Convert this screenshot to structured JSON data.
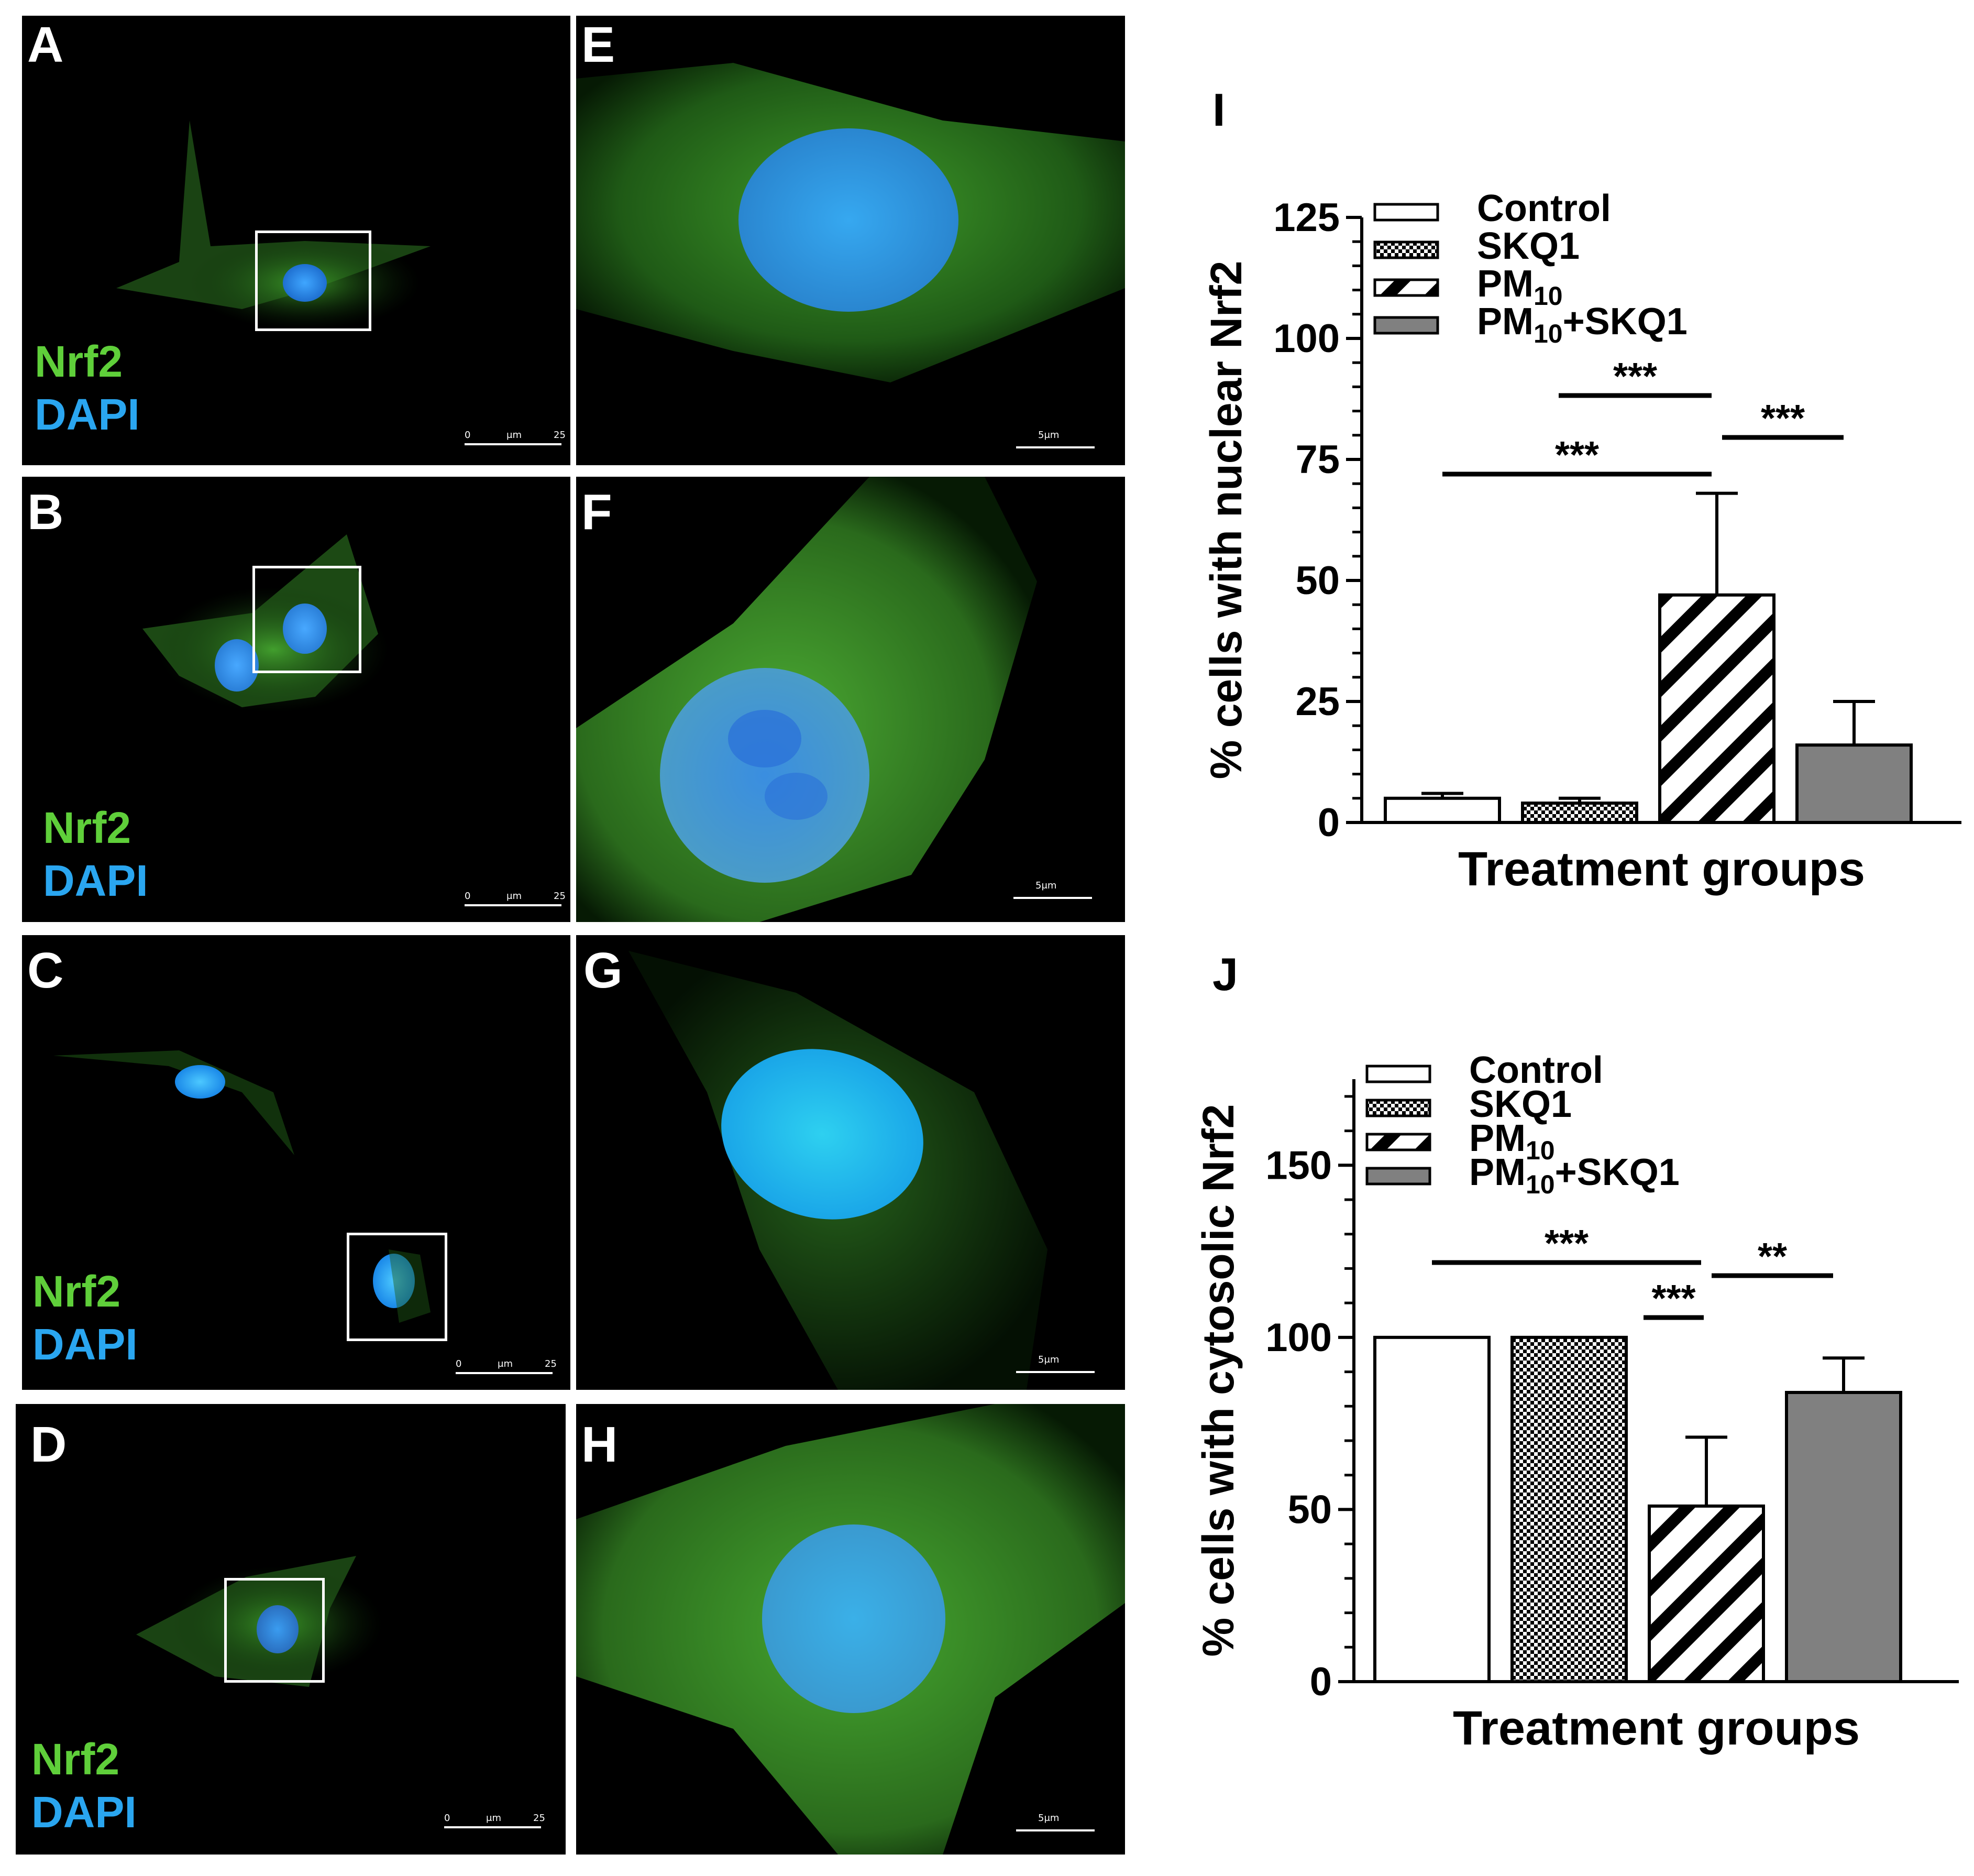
{
  "micrographs": [
    {
      "label": "A",
      "stain_green": "Nrf2",
      "stain_blue": "DAPI",
      "scale": {
        "left": "0",
        "mid": "μm",
        "right": "25"
      }
    },
    {
      "label": "B",
      "stain_green": "Nrf2",
      "stain_blue": "DAPI",
      "scale": {
        "left": "0",
        "mid": "μm",
        "right": "25"
      }
    },
    {
      "label": "C",
      "stain_green": "Nrf2",
      "stain_blue": "DAPI",
      "scale": {
        "left": "0",
        "mid": "μm",
        "right": "25"
      }
    },
    {
      "label": "D",
      "stain_green": "Nrf2",
      "stain_blue": "DAPI",
      "scale": {
        "left": "0",
        "mid": "μm",
        "right": "25"
      }
    },
    {
      "label": "E",
      "scale_text": "5μm"
    },
    {
      "label": "F",
      "scale_text": "5μm"
    },
    {
      "label": "G",
      "scale_text": "5μm"
    },
    {
      "label": "H",
      "scale_text": "5μm"
    }
  ],
  "colors": {
    "nrf2": "#5fcf3a",
    "dapi": "#2aa6f0",
    "bar_gray": "#808080"
  },
  "chart_data": [
    {
      "panel": "I",
      "type": "bar",
      "ylabel": "% cells with nuclear Nrf2",
      "xlabel": "Treatment groups",
      "ylim": [
        0,
        125
      ],
      "yticks": [
        "0",
        "25",
        "50",
        "75",
        "100",
        "125"
      ],
      "categories": [
        "Control",
        "SKQ1",
        "PM10",
        "PM10+SKQ1"
      ],
      "values": [
        5,
        4,
        47,
        16
      ],
      "errors": [
        1,
        1,
        21,
        9
      ],
      "patterns": [
        "white",
        "checker",
        "diagonal",
        "gray"
      ],
      "legend": [
        {
          "text": "Control",
          "sub": ""
        },
        {
          "text": "SKQ1",
          "sub": ""
        },
        {
          "text": "PM",
          "sub": "10",
          "rest": ""
        },
        {
          "text": "PM",
          "sub": "10",
          "rest": "+SKQ1"
        }
      ],
      "significance": [
        {
          "from": 0,
          "to": 2,
          "label": "***"
        },
        {
          "from": 1,
          "to": 2,
          "label": "***"
        },
        {
          "from": 2,
          "to": 3,
          "label": "***"
        }
      ]
    },
    {
      "panel": "J",
      "type": "bar",
      "ylabel": "% cells with cytosolic Nrf2",
      "xlabel": "Treatment groups",
      "ylim": [
        0,
        175
      ],
      "yticks": [
        "0",
        "50",
        "100",
        "150"
      ],
      "categories": [
        "Control",
        "SKQ1",
        "PM10",
        "PM10+SKQ1"
      ],
      "values": [
        100,
        100,
        51,
        84
      ],
      "errors": [
        0,
        0,
        20,
        10
      ],
      "patterns": [
        "white",
        "checker",
        "diagonal",
        "gray"
      ],
      "legend": [
        {
          "text": "Control",
          "sub": ""
        },
        {
          "text": "SKQ1",
          "sub": ""
        },
        {
          "text": "PM",
          "sub": "10",
          "rest": ""
        },
        {
          "text": "PM",
          "sub": "10",
          "rest": "+SKQ1"
        }
      ],
      "significance": [
        {
          "from": 0,
          "to": 2,
          "label": "***"
        },
        {
          "from": 2,
          "to": 2,
          "label": "***",
          "variant": "short-left"
        },
        {
          "from": 2,
          "to": 3,
          "label": "**"
        }
      ]
    }
  ]
}
